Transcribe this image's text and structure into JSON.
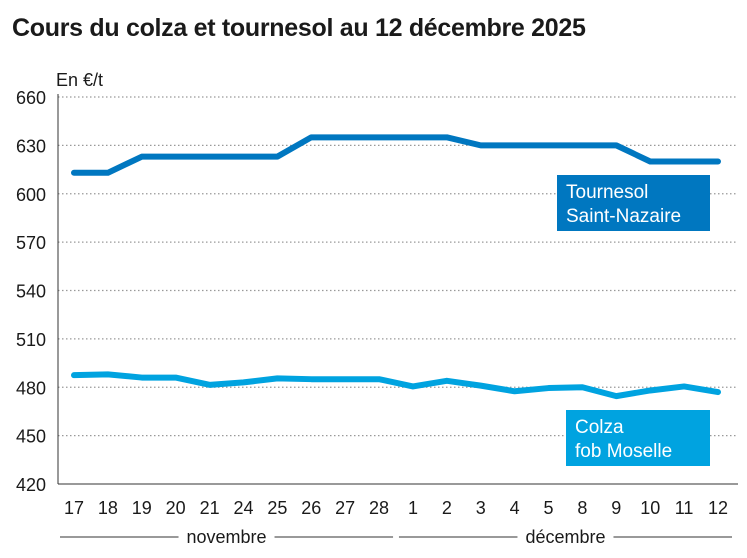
{
  "title": "Cours du colza et tournesol au 12 décembre 2025",
  "chart_data": {
    "type": "line",
    "title": "Cours du colza et tournesol au 12 décembre 2025",
    "ylabel": "En €/t",
    "ylim": [
      420,
      660
    ],
    "yticks": [
      420,
      450,
      480,
      510,
      540,
      570,
      600,
      630,
      660
    ],
    "grid": true,
    "categories": [
      "17",
      "18",
      "19",
      "20",
      "21",
      "24",
      "25",
      "26",
      "27",
      "28",
      "1",
      "2",
      "3",
      "4",
      "5",
      "8",
      "9",
      "10",
      "11",
      "12"
    ],
    "month_groups": [
      {
        "label": "novembre",
        "from": 0,
        "to": 9
      },
      {
        "label": "décembre",
        "from": 10,
        "to": 19
      }
    ],
    "series": [
      {
        "name": "Tournesol Saint-Nazaire",
        "name_lines": [
          "Tournesol",
          "Saint-Nazaire"
        ],
        "color": "#0077c0",
        "values": [
          613,
          613,
          623,
          623,
          623,
          623,
          623,
          635,
          635,
          635,
          635,
          635,
          630,
          630,
          630,
          630,
          630,
          620,
          620,
          620
        ]
      },
      {
        "name": "Colza fob Moselle",
        "name_lines": [
          "Colza",
          "fob Moselle"
        ],
        "color": "#00a3e0",
        "values": [
          487.5,
          488,
          486,
          486,
          481.5,
          483,
          485.5,
          485,
          485,
          485,
          480.5,
          484,
          481,
          477.5,
          479.5,
          480,
          474.5,
          478,
          480.5,
          477
        ]
      }
    ]
  }
}
